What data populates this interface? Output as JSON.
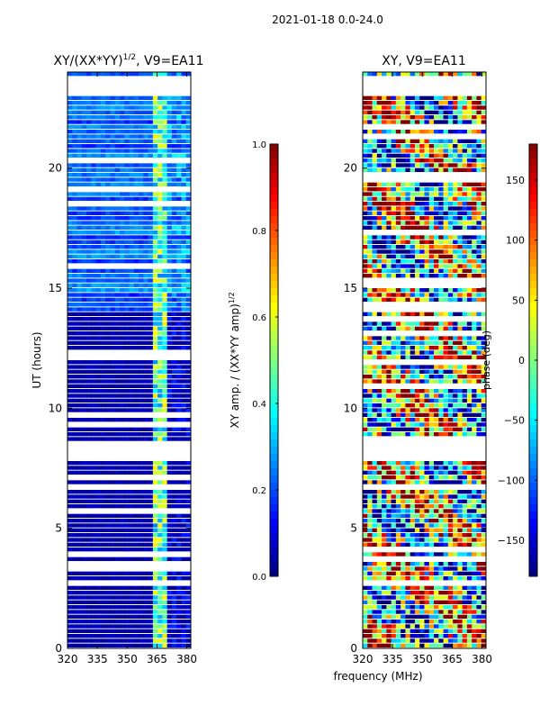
{
  "suptitle": "2021-01-18 0.0-24.0",
  "common_xlabel": "frequency (MHz)",
  "chart_data": [
    {
      "type": "heatmap",
      "title_main": "XY/(XX*YY)",
      "title_sup": "1/2",
      "title_tail": ", V9=EA11",
      "ylabel": "UT (hours)",
      "xlim": [
        320,
        382
      ],
      "ylim": [
        0,
        24
      ],
      "xticks": [
        320,
        335,
        350,
        365,
        380
      ],
      "yticks": [
        0,
        5,
        10,
        15,
        20
      ],
      "colorbar": {
        "label_main": "XY amp. / (XX*YY amp)",
        "label_sup": "1/2",
        "range": [
          0.0,
          1.0
        ],
        "ticks": [
          "0.0",
          "0.2",
          "0.4",
          "0.6",
          "0.8",
          "1.0"
        ],
        "tick_values": [
          0.0,
          0.2,
          0.4,
          0.6,
          0.8,
          1.0
        ],
        "colormap": "jet"
      },
      "gap_bands_hours": [
        [
          3.3,
          3.5
        ],
        [
          7.7,
          8.5
        ],
        [
          23.0,
          23.8
        ]
      ],
      "rfi_band_mhz": [
        362,
        371
      ],
      "typical_value_low": 0.05,
      "typical_value_high": 0.25
    },
    {
      "type": "heatmap",
      "title_main": "XY, V9=EA11",
      "title_sup": "",
      "title_tail": "",
      "ylabel": "",
      "xlim": [
        320,
        382
      ],
      "ylim": [
        0,
        24
      ],
      "xticks": [
        320,
        335,
        350,
        365,
        380
      ],
      "yticks": [
        0,
        5,
        10,
        15,
        20
      ],
      "colorbar": {
        "label_main": "phase (deg)",
        "label_sup": "",
        "range": [
          -180,
          180
        ],
        "ticks": [
          "−150",
          "−100",
          "−50",
          "0",
          "50",
          "100",
          "150"
        ],
        "tick_values": [
          -150,
          -100,
          -50,
          0,
          50,
          100,
          150
        ],
        "colormap": "jet"
      },
      "gap_bands_hours": [
        [
          8.5,
          8.7
        ],
        [
          7.7,
          8.3
        ],
        [
          23.0,
          23.8
        ]
      ],
      "typical_value_low": -180,
      "typical_value_high": 180
    }
  ]
}
